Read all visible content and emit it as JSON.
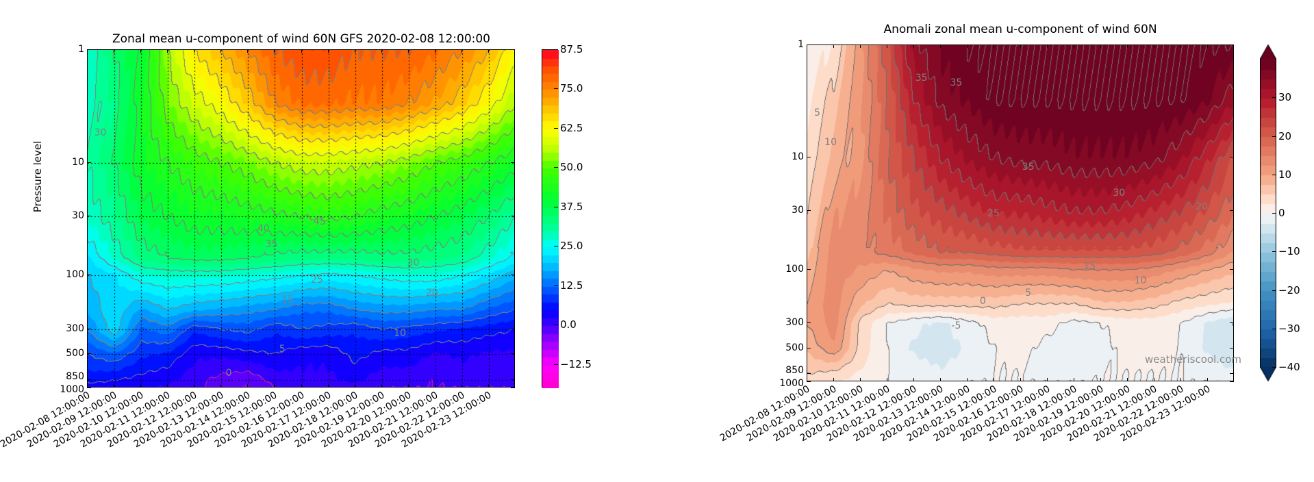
{
  "chart_data": [
    {
      "type": "heatmap",
      "style": "filled contour",
      "title": "Zonal mean u-component of wind 60N GFS 2020-02-08 12:00:00",
      "xlabel": "",
      "ylabel": "Pressure level",
      "y_scale": "log",
      "y_inverted": true,
      "ylim": [
        1000,
        1
      ],
      "xlim": [
        "2020-02-08 12:00:00",
        "2020-02-24 12:00:00"
      ],
      "grid": true,
      "colormap": "gist_rainbow_r",
      "color_range": [
        -20,
        87.5
      ],
      "color_step": 2.5,
      "contour_step": 5,
      "contour_color": "#808080",
      "zero_contour_color": "#cc2299",
      "x_tick_labels": [
        "2020-02-08 12:00:00",
        "2020-02-09 12:00:00",
        "2020-02-10 12:00:00",
        "2020-02-11 12:00:00",
        "2020-02-12 12:00:00",
        "2020-02-13 12:00:00",
        "2020-02-14 12:00:00",
        "2020-02-15 12:00:00",
        "2020-02-16 12:00:00",
        "2020-02-17 12:00:00",
        "2020-02-18 12:00:00",
        "2020-02-19 12:00:00",
        "2020-02-20 12:00:00",
        "2020-02-21 12:00:00",
        "2020-02-22 12:00:00",
        "2020-02-23 12:00:00"
      ],
      "y_tick_labels": [
        "1",
        "10",
        "30",
        "100",
        "300",
        "500",
        "850",
        "1000"
      ],
      "y_ticks": [
        1,
        10,
        30,
        100,
        300,
        500,
        850,
        1000
      ],
      "colorbar_ticks": [
        "87.5",
        "75.0",
        "62.5",
        "50.0",
        "37.5",
        "25.0",
        "12.5",
        "0.0",
        "−12.5"
      ],
      "colorbar_tick_values": [
        87.5,
        75,
        62.5,
        50,
        37.5,
        25,
        12.5,
        0,
        -12.5
      ],
      "colorbar_stops": [
        [
          -20,
          "#ff00cc"
        ],
        [
          -12.5,
          "#ff00ff"
        ],
        [
          -5,
          "#9900ff"
        ],
        [
          0,
          "#4400ff"
        ],
        [
          5,
          "#0000ff"
        ],
        [
          12.5,
          "#0066ff"
        ],
        [
          20,
          "#00ccff"
        ],
        [
          25,
          "#00ffff"
        ],
        [
          31,
          "#00ff99"
        ],
        [
          40,
          "#00ff33"
        ],
        [
          50,
          "#44ff00"
        ],
        [
          57,
          "#ccff00"
        ],
        [
          62.5,
          "#ffff00"
        ],
        [
          68,
          "#ffcc00"
        ],
        [
          75,
          "#ff8800"
        ],
        [
          81,
          "#ff5500"
        ],
        [
          87.5,
          "#ff0022"
        ]
      ],
      "times": [
        "2020-02-08 12:00",
        "2020-02-09 12:00",
        "2020-02-10 12:00",
        "2020-02-11 12:00",
        "2020-02-12 12:00",
        "2020-02-13 12:00",
        "2020-02-14 12:00",
        "2020-02-15 12:00",
        "2020-02-16 12:00",
        "2020-02-17 12:00",
        "2020-02-18 12:00",
        "2020-02-19 12:00",
        "2020-02-20 12:00",
        "2020-02-21 12:00",
        "2020-02-22 12:00",
        "2020-02-23 12:00",
        "2020-02-24 12:00"
      ],
      "pressure_levels": [
        1,
        3,
        10,
        30,
        70,
        100,
        200,
        300,
        500,
        850,
        1000
      ],
      "values": [
        [
          28,
          35,
          40,
          55,
          65,
          70,
          75,
          80,
          82,
          82,
          80,
          80,
          80,
          78,
          75,
          70,
          62
        ],
        [
          28,
          33,
          42,
          52,
          58,
          62,
          68,
          75,
          78,
          78,
          77,
          77,
          75,
          72,
          68,
          62,
          55
        ],
        [
          30,
          35,
          42,
          45,
          48,
          50,
          52,
          55,
          57,
          57,
          56,
          55,
          53,
          50,
          48,
          45,
          42
        ],
        [
          28,
          32,
          38,
          40,
          42,
          42,
          43,
          44,
          45,
          46,
          45,
          43,
          42,
          40,
          38,
          35,
          30
        ],
        [
          22,
          28,
          33,
          35,
          36,
          36,
          35,
          34,
          33,
          33,
          33,
          34,
          34,
          33,
          32,
          28,
          24
        ],
        [
          20,
          22,
          27,
          28,
          28,
          28,
          27,
          26,
          25,
          24,
          25,
          26,
          27,
          27,
          25,
          22,
          18
        ],
        [
          18,
          22,
          17,
          20,
          18,
          17,
          16,
          15,
          13,
          13,
          15,
          16,
          16,
          15,
          15,
          12,
          10
        ],
        [
          15,
          22,
          12,
          14,
          8,
          10,
          11,
          8,
          10,
          9,
          8,
          10,
          9,
          8,
          7,
          6,
          5
        ],
        [
          10,
          12,
          8,
          7,
          3,
          3,
          4,
          5,
          3,
          3,
          6,
          4,
          4,
          2,
          3,
          2,
          2
        ],
        [
          6,
          5,
          4,
          3,
          1,
          -1,
          -2,
          1,
          2,
          2,
          3,
          1,
          1,
          0,
          1,
          1,
          1
        ],
        [
          3,
          3,
          3,
          2,
          1,
          -2,
          -3,
          0,
          1,
          1,
          1,
          0,
          0,
          0,
          0,
          0,
          0
        ]
      ],
      "contour_labels": [
        {
          "text": "45",
          "day": 8.7,
          "p": 34
        },
        {
          "text": "40",
          "day": 6.6,
          "p": 39
        },
        {
          "text": "35",
          "day": 6.9,
          "p": 54
        },
        {
          "text": "30",
          "day": 12.2,
          "p": 79
        },
        {
          "text": "25",
          "day": 8.6,
          "p": 111
        },
        {
          "text": "20",
          "day": 12.9,
          "p": 145
        },
        {
          "text": "15",
          "day": 7.5,
          "p": 166
        },
        {
          "text": "10",
          "day": 11.7,
          "p": 330
        },
        {
          "text": "5",
          "day": 7.3,
          "p": 460
        },
        {
          "text": "30",
          "day": 0.5,
          "p": 5.5
        },
        {
          "text": "0",
          "day": 5.3,
          "p": 750
        }
      ]
    },
    {
      "type": "heatmap",
      "style": "filled contour",
      "title": "Anomali zonal mean u-component of wind 60N",
      "xlabel": "",
      "ylabel": "",
      "y_scale": "log",
      "y_inverted": true,
      "ylim": [
        1000,
        1
      ],
      "xlim": [
        "2020-02-08 12:00:00",
        "2020-02-24 12:00:00"
      ],
      "grid": false,
      "colormap": "RdBu_r",
      "color_range": [
        -40,
        40
      ],
      "color_step": 2.5,
      "colorbar_extend": "both",
      "contour_step": 5,
      "contour_color": "#707070",
      "x_tick_labels": [
        "2020-02-08 12:00:00",
        "2020-02-09 12:00:00",
        "2020-02-10 12:00:00",
        "2020-02-11 12:00:00",
        "2020-02-12 12:00:00",
        "2020-02-13 12:00:00",
        "2020-02-14 12:00:00",
        "2020-02-15 12:00:00",
        "2020-02-16 12:00:00",
        "2020-02-17 12:00:00",
        "2020-02-18 12:00:00",
        "2020-02-19 12:00:00",
        "2020-02-20 12:00:00",
        "2020-02-21 12:00:00",
        "2020-02-22 12:00:00",
        "2020-02-23 12:00:00"
      ],
      "y_tick_labels": [
        "1",
        "10",
        "30",
        "100",
        "300",
        "500",
        "850",
        "1000"
      ],
      "y_ticks": [
        1,
        10,
        30,
        100,
        300,
        500,
        850,
        1000
      ],
      "colorbar_ticks": [
        "30",
        "20",
        "10",
        "0",
        "−10",
        "−20",
        "−30",
        "−40"
      ],
      "colorbar_tick_values": [
        30,
        20,
        10,
        0,
        -10,
        -20,
        -30,
        -40
      ],
      "colorbar_stops": [
        [
          -40,
          "#053061"
        ],
        [
          -30,
          "#2166ac"
        ],
        [
          -20,
          "#4393c3"
        ],
        [
          -10,
          "#92c5de"
        ],
        [
          -4,
          "#d1e5f0"
        ],
        [
          0,
          "#f7f7f7"
        ],
        [
          4,
          "#fddbc7"
        ],
        [
          10,
          "#f4a582"
        ],
        [
          20,
          "#d6604d"
        ],
        [
          30,
          "#b2182b"
        ],
        [
          40,
          "#67001f"
        ]
      ],
      "times": [
        "2020-02-08 12:00",
        "2020-02-09 12:00",
        "2020-02-10 12:00",
        "2020-02-11 12:00",
        "2020-02-12 12:00",
        "2020-02-13 12:00",
        "2020-02-14 12:00",
        "2020-02-15 12:00",
        "2020-02-16 12:00",
        "2020-02-17 12:00",
        "2020-02-18 12:00",
        "2020-02-19 12:00",
        "2020-02-20 12:00",
        "2020-02-21 12:00",
        "2020-02-22 12:00",
        "2020-02-23 12:00",
        "2020-02-24 12:00"
      ],
      "pressure_levels": [
        1,
        3,
        10,
        30,
        70,
        100,
        200,
        300,
        500,
        850,
        1000
      ],
      "values": [
        [
          0,
          3,
          12,
          22,
          34,
          38,
          40,
          40,
          40,
          40,
          40,
          40,
          40,
          40,
          40,
          40,
          40
        ],
        [
          2,
          6,
          12,
          20,
          30,
          36,
          38,
          40,
          40,
          40,
          40,
          40,
          40,
          40,
          40,
          38,
          33
        ],
        [
          3,
          8,
          12,
          20,
          25,
          30,
          33,
          35,
          36,
          36,
          37,
          37,
          37,
          36,
          33,
          28,
          22
        ],
        [
          5,
          12,
          14,
          18,
          22,
          24,
          26,
          28,
          28,
          29,
          30,
          30,
          29,
          27,
          25,
          22,
          18
        ],
        [
          7,
          14,
          14,
          16,
          18,
          20,
          20,
          21,
          22,
          22,
          22,
          22,
          22,
          21,
          19,
          16,
          12
        ],
        [
          8,
          14,
          12,
          10,
          12,
          13,
          13,
          14,
          14,
          14,
          15,
          15,
          15,
          14,
          12,
          10,
          8
        ],
        [
          10,
          14,
          8,
          5,
          6,
          6,
          6,
          6,
          5,
          5,
          5,
          7,
          7,
          6,
          4,
          3,
          2
        ],
        [
          10,
          14,
          4,
          0,
          -2,
          -3,
          -1,
          1,
          1,
          1,
          -1,
          0,
          1,
          1,
          0,
          -3,
          -5
        ],
        [
          8,
          12,
          4,
          0,
          -3,
          -4,
          -2,
          0,
          1,
          -1,
          -2,
          -1,
          1,
          1,
          0,
          -3,
          -5
        ],
        [
          5,
          4,
          2,
          0,
          -1,
          -2,
          -1,
          0,
          0,
          -1,
          -1,
          0,
          0,
          0,
          0,
          -1,
          -2
        ],
        [
          3,
          3,
          1,
          0,
          -1,
          -1,
          0,
          0,
          0,
          0,
          0,
          0,
          0,
          0,
          0,
          0,
          0
        ]
      ],
      "contour_labels": [
        {
          "text": "35",
          "day": 4.3,
          "p": 2
        },
        {
          "text": "35",
          "day": 5.6,
          "p": 2.2
        },
        {
          "text": "35",
          "day": 8.3,
          "p": 12.4
        },
        {
          "text": "30",
          "day": 11.7,
          "p": 21
        },
        {
          "text": "25",
          "day": 7.0,
          "p": 32
        },
        {
          "text": "20",
          "day": 14.8,
          "p": 28
        },
        {
          "text": "15",
          "day": 10.6,
          "p": 94
        },
        {
          "text": "10",
          "day": 12.5,
          "p": 127
        },
        {
          "text": "5",
          "day": 8.3,
          "p": 164
        },
        {
          "text": "0",
          "day": 6.6,
          "p": 194
        },
        {
          "text": "10",
          "day": 0.9,
          "p": 7.4
        },
        {
          "text": "5",
          "day": 0.4,
          "p": 4.1
        },
        {
          "text": "-5",
          "day": 5.6,
          "p": 322
        }
      ],
      "watermark": "weatheriscool.com"
    }
  ]
}
